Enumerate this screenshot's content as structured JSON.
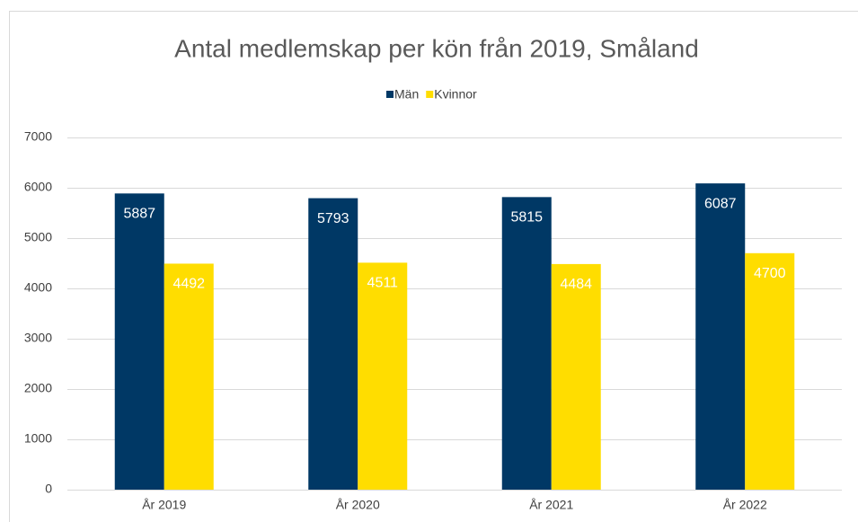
{
  "chart_data": {
    "type": "bar",
    "title": "Antal medlemskap per kön från 2019, Småland",
    "categories": [
      "År 2019",
      "År 2020",
      "År 2021",
      "År 2022"
    ],
    "series": [
      {
        "name": "Män",
        "color": "#003865",
        "values": [
          5887,
          5793,
          5815,
          6087
        ]
      },
      {
        "name": "Kvinnor",
        "color": "#ffdd00",
        "values": [
          4492,
          4511,
          4484,
          4700
        ]
      }
    ],
    "ylim": [
      0,
      7000
    ],
    "yticks": [
      0,
      1000,
      2000,
      3000,
      4000,
      5000,
      6000,
      7000
    ],
    "grid": true,
    "legend": "top"
  }
}
